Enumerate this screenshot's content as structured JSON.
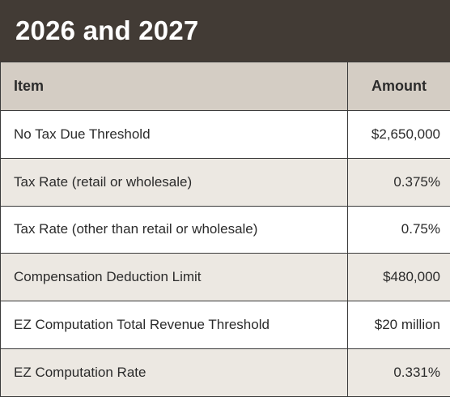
{
  "title": "2026 and 2027",
  "columns": {
    "item": "Item",
    "amount": "Amount"
  },
  "rows": [
    {
      "item": "No Tax Due Threshold",
      "amount": "$2,650,000"
    },
    {
      "item": "Tax Rate (retail or wholesale)",
      "amount": "0.375%"
    },
    {
      "item": "Tax Rate (other than retail or wholesale)",
      "amount": "0.75%"
    },
    {
      "item": "Compensation Deduction Limit",
      "amount": "$480,000"
    },
    {
      "item": "EZ Computation Total Revenue Threshold",
      "amount": "$20 million"
    },
    {
      "item": "EZ Computation Rate",
      "amount": "0.331%"
    }
  ],
  "colors": {
    "title_bg": "#423b35",
    "header_bg": "#d4cdc4",
    "row_alt_bg": "#ece8e2",
    "row_bg": "#ffffff"
  }
}
